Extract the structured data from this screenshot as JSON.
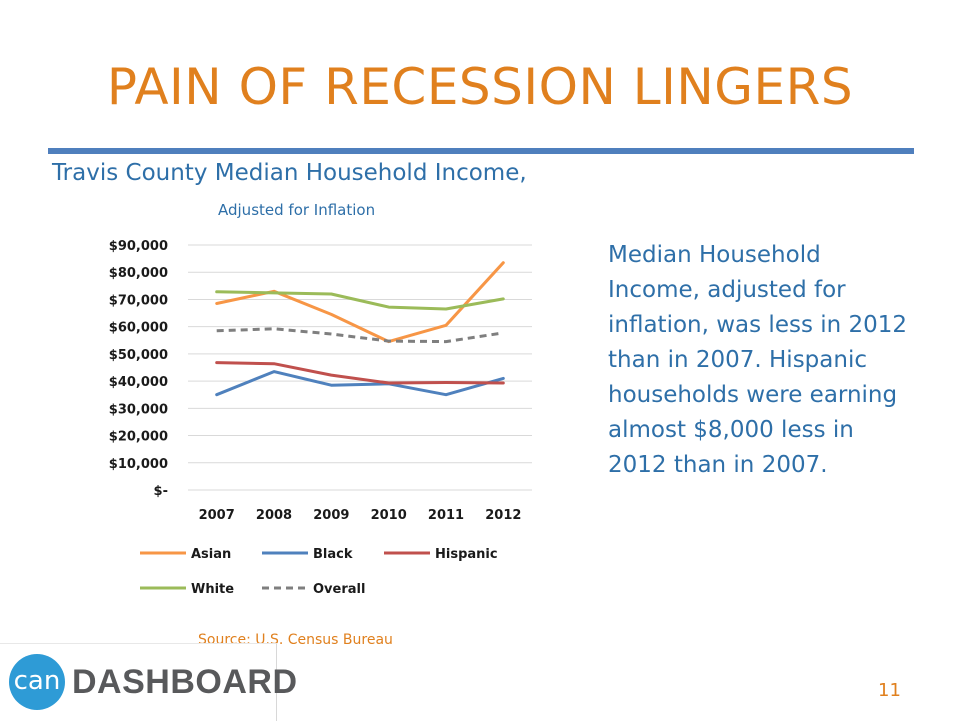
{
  "slide": {
    "title": "PAIN OF RECESSION LINGERS",
    "body_text": "Median Household Income, adjusted for inflation, was less in 2012 than in 2007. Hispanic households were earning almost $8,000 less in 2012 than in 2007.",
    "source": "Source:  U.S. Census Bureau",
    "page_number": "11",
    "logo": {
      "mark": "can",
      "wordmark": "DASHBOARD"
    }
  },
  "colors": {
    "title": "#e0801e",
    "accent_rule": "#4f7fbd",
    "text_blue": "#2e6fa8",
    "gridline": "#d9d9d9"
  },
  "chart_data": {
    "type": "line",
    "title": "Travis County Median Household Income,",
    "subtitle": "Adjusted for Inflation",
    "xlabel": "",
    "ylabel": "",
    "x": [
      "2007",
      "2008",
      "2009",
      "2010",
      "2011",
      "2012"
    ],
    "ylim": [
      0,
      90000
    ],
    "yticks": [
      0,
      10000,
      20000,
      30000,
      40000,
      50000,
      60000,
      70000,
      80000,
      90000
    ],
    "ytick_labels": [
      "$-",
      "$10,000",
      "$20,000",
      "$30,000",
      "$40,000",
      "$50,000",
      "$60,000",
      "$70,000",
      "$80,000",
      "$90,000"
    ],
    "grid": true,
    "legend_position": "bottom",
    "series": [
      {
        "name": "Asian",
        "color": "#f79646",
        "dash": "solid",
        "values": [
          68500,
          73000,
          64500,
          54500,
          60500,
          83500
        ]
      },
      {
        "name": "Black",
        "color": "#4f81bd",
        "dash": "solid",
        "values": [
          35000,
          43500,
          38500,
          39000,
          35000,
          41000
        ]
      },
      {
        "name": "Hispanic",
        "color": "#c0504d",
        "dash": "solid",
        "values": [
          46800,
          46400,
          42200,
          39300,
          39500,
          39300
        ]
      },
      {
        "name": "White",
        "color": "#9bbb59",
        "dash": "solid",
        "values": [
          72800,
          72400,
          72000,
          67200,
          66500,
          70200
        ]
      },
      {
        "name": "Overall",
        "color": "#7f7f7f",
        "dash": "dashed",
        "values": [
          58500,
          59200,
          57300,
          54700,
          54500,
          57700
        ]
      }
    ]
  }
}
